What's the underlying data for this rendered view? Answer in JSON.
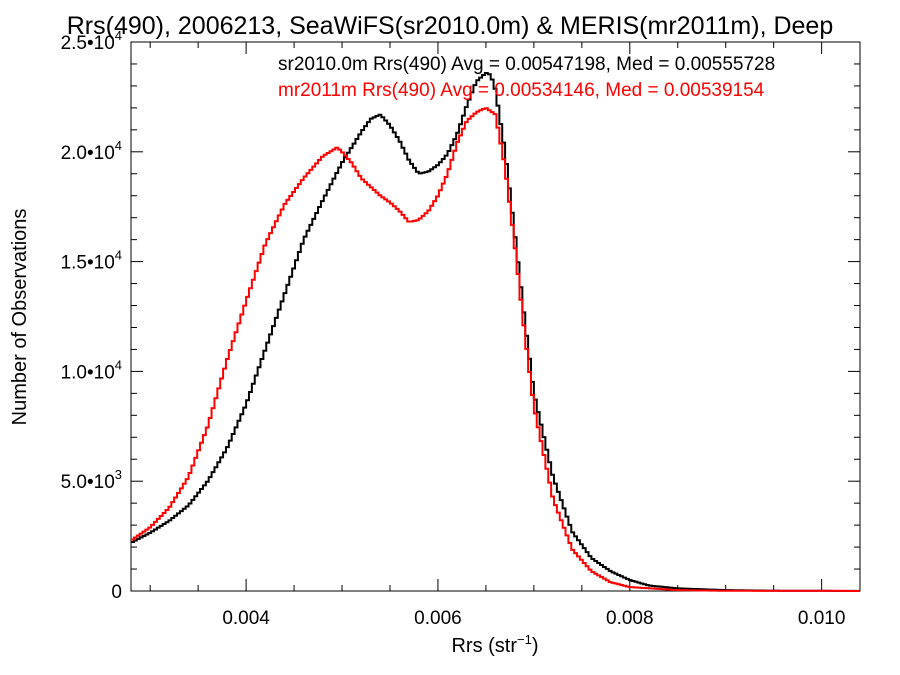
{
  "chart_data": {
    "type": "line",
    "title": "Rrs(490), 2006213, SeaWiFS(sr2010.0m) & MERIS(mr2011m), Deep",
    "xlabel": "Rrs (str",
    "xlabel_sup": "−1",
    "xlabel_end": ")",
    "ylabel": "Number of Observations",
    "xlim": [
      0.0028,
      0.0104
    ],
    "ylim": [
      0,
      25000
    ],
    "x_ticks": [
      {
        "value": 0.004,
        "label": "0.004"
      },
      {
        "value": 0.006,
        "label": "0.006"
      },
      {
        "value": 0.008,
        "label": "0.008"
      },
      {
        "value": 0.01,
        "label": "0.010"
      }
    ],
    "y_ticks": [
      {
        "value": 0,
        "label": "0",
        "sup": ""
      },
      {
        "value": 5000,
        "label": "5.0•10",
        "sup": "3"
      },
      {
        "value": 10000,
        "label": "1.0•10",
        "sup": "4"
      },
      {
        "value": 15000,
        "label": "1.5•10",
        "sup": "4"
      },
      {
        "value": 20000,
        "label": "2.0•10",
        "sup": "4"
      },
      {
        "value": 25000,
        "label": "2.5•10",
        "sup": "4"
      }
    ],
    "grid": false,
    "legend_position": "top-right",
    "series": [
      {
        "name": "sr2010.0m Rrs(490) Avg = 0.00547198, Med = 0.00555728",
        "color": "#000000",
        "x": [
          0.0028,
          0.003,
          0.0032,
          0.0034,
          0.0036,
          0.0038,
          0.004,
          0.0042,
          0.0044,
          0.0046,
          0.0048,
          0.005,
          0.0052,
          0.0053,
          0.0054,
          0.0055,
          0.0056,
          0.0057,
          0.0058,
          0.0059,
          0.006,
          0.0061,
          0.0062,
          0.0063,
          0.0064,
          0.0065,
          0.00655,
          0.0066,
          0.0067,
          0.0068,
          0.0069,
          0.007,
          0.0072,
          0.0074,
          0.0076,
          0.0078,
          0.008,
          0.0082,
          0.0085,
          0.009,
          0.0095,
          0.0104
        ],
        "values": [
          2200,
          2650,
          3200,
          3900,
          5000,
          6500,
          8500,
          11000,
          13500,
          16000,
          17800,
          19500,
          20900,
          21500,
          21700,
          21200,
          20500,
          19600,
          19000,
          19100,
          19400,
          19900,
          20800,
          22100,
          23200,
          23600,
          23500,
          22800,
          20000,
          16300,
          12500,
          9000,
          5200,
          2700,
          1500,
          900,
          500,
          250,
          120,
          40,
          15,
          5
        ]
      },
      {
        "name": "mr2011m Rrs(490) Avg = 0.00534146, Med = 0.00539154",
        "color": "#ff0000",
        "x": [
          0.0028,
          0.003,
          0.0032,
          0.0034,
          0.0036,
          0.0038,
          0.004,
          0.0042,
          0.0044,
          0.0046,
          0.0048,
          0.00495,
          0.005,
          0.0051,
          0.0052,
          0.0053,
          0.0054,
          0.0055,
          0.0056,
          0.0057,
          0.0058,
          0.0059,
          0.006,
          0.0061,
          0.0062,
          0.0063,
          0.0064,
          0.0065,
          0.0066,
          0.0067,
          0.0068,
          0.0069,
          0.007,
          0.0072,
          0.0074,
          0.0076,
          0.0078,
          0.008,
          0.0085,
          0.009,
          0.0104
        ],
        "values": [
          2300,
          2900,
          3800,
          5200,
          7500,
          10500,
          13200,
          15800,
          17600,
          18800,
          19800,
          20200,
          20000,
          19500,
          18800,
          18400,
          18000,
          17700,
          17300,
          16800,
          16900,
          17300,
          18000,
          19000,
          20400,
          21400,
          21800,
          22000,
          21700,
          19300,
          15800,
          11900,
          8400,
          4200,
          1900,
          900,
          400,
          180,
          40,
          10,
          2
        ]
      }
    ]
  }
}
